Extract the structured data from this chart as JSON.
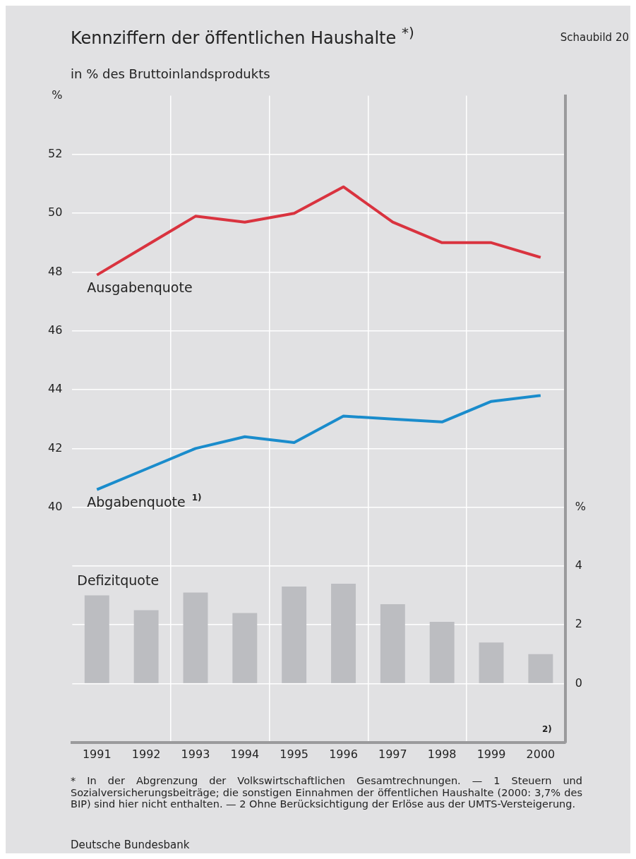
{
  "chart_data": {
    "type": "line",
    "title": "Kennziffern der öffentlichen Haushalte $^{*)}$",
    "subtitle": "in % des Bruttoinlandsprodukts",
    "categories": [
      "1991",
      "1992",
      "1993",
      "1994",
      "1995",
      "1996",
      "1997",
      "1998",
      "1999",
      "2000"
    ],
    "series": [
      {
        "name": "Ausgabenquote",
        "color": "#d9333f",
        "values": [
          47.9,
          48.9,
          49.9,
          49.7,
          50.0,
          50.9,
          49.7,
          49.0,
          49.0,
          48.5
        ]
      },
      {
        "name": "Abgabenquote $^{1)}$",
        "color": "#1a8ccc",
        "values": [
          40.6,
          41.3,
          42.0,
          42.4,
          42.2,
          43.1,
          43.0,
          42.9,
          43.6,
          43.8
        ]
      },
      {
        "name": "Defizitquote",
        "type": "bar",
        "axis": "y2",
        "color": "#bcbdc1",
        "values": [
          3.0,
          2.5,
          3.1,
          2.4,
          3.3,
          3.4,
          2.7,
          2.1,
          1.4,
          1.0
        ]
      }
    ],
    "ylim": [
      32,
      54
    ],
    "yticks": [
      40,
      42,
      44,
      46,
      48,
      50,
      52,
      {
        "value": 54,
        "label": "%"
      }
    ],
    "y2lim": [
      -2,
      20
    ],
    "y2ticks": [
      0,
      2,
      4,
      {
        "value": 6,
        "label": "%"
      }
    ],
    "grid": true,
    "annotations": [
      "Schaubild 20",
      "2)",
      "* In der Abgrenzung der Volkswirtschaftlichen Gesamtrechnungen. — 1 Steuern und Sozialversicherungsbeiträge; die sonstigen Einnahmen der öffentlichen Haushalte (2000: 3,7% des BIP) sind hier nicht enthalten. — 2 Ohne Berücksichtigung der Erlöse aus der UMTS-Versteigerung.",
      "Deutsche Bundesbank"
    ]
  }
}
